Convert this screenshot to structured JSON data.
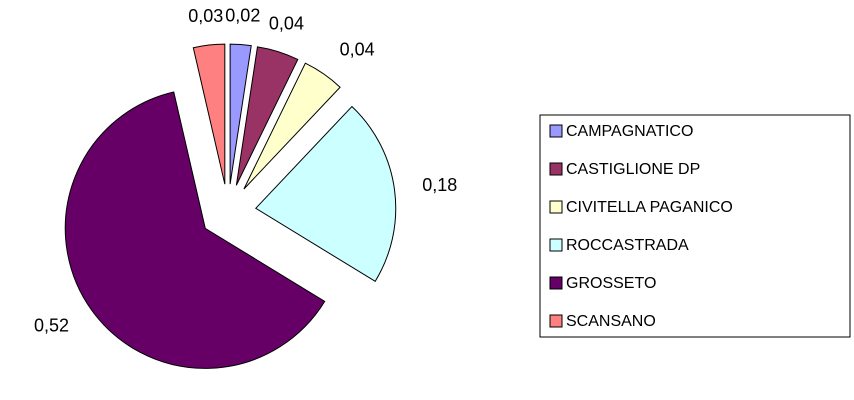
{
  "chart_data": {
    "type": "pie",
    "categories": [
      "CAMPAGNATICO",
      "CASTIGLIONE DP",
      "CIVITELLA PAGANICO",
      "ROCCASTRADA",
      "GROSSETO",
      "SCANSANO"
    ],
    "values": [
      0.02,
      0.04,
      0.04,
      0.18,
      0.52,
      0.03
    ],
    "value_labels": [
      "0,02",
      "0,04",
      "0,04",
      "0,18",
      "0,52",
      "0,03"
    ],
    "colors": [
      "#9999ff",
      "#993366",
      "#ffffcc",
      "#ccffff",
      "#660066",
      "#ff8080"
    ],
    "legend": "right"
  }
}
